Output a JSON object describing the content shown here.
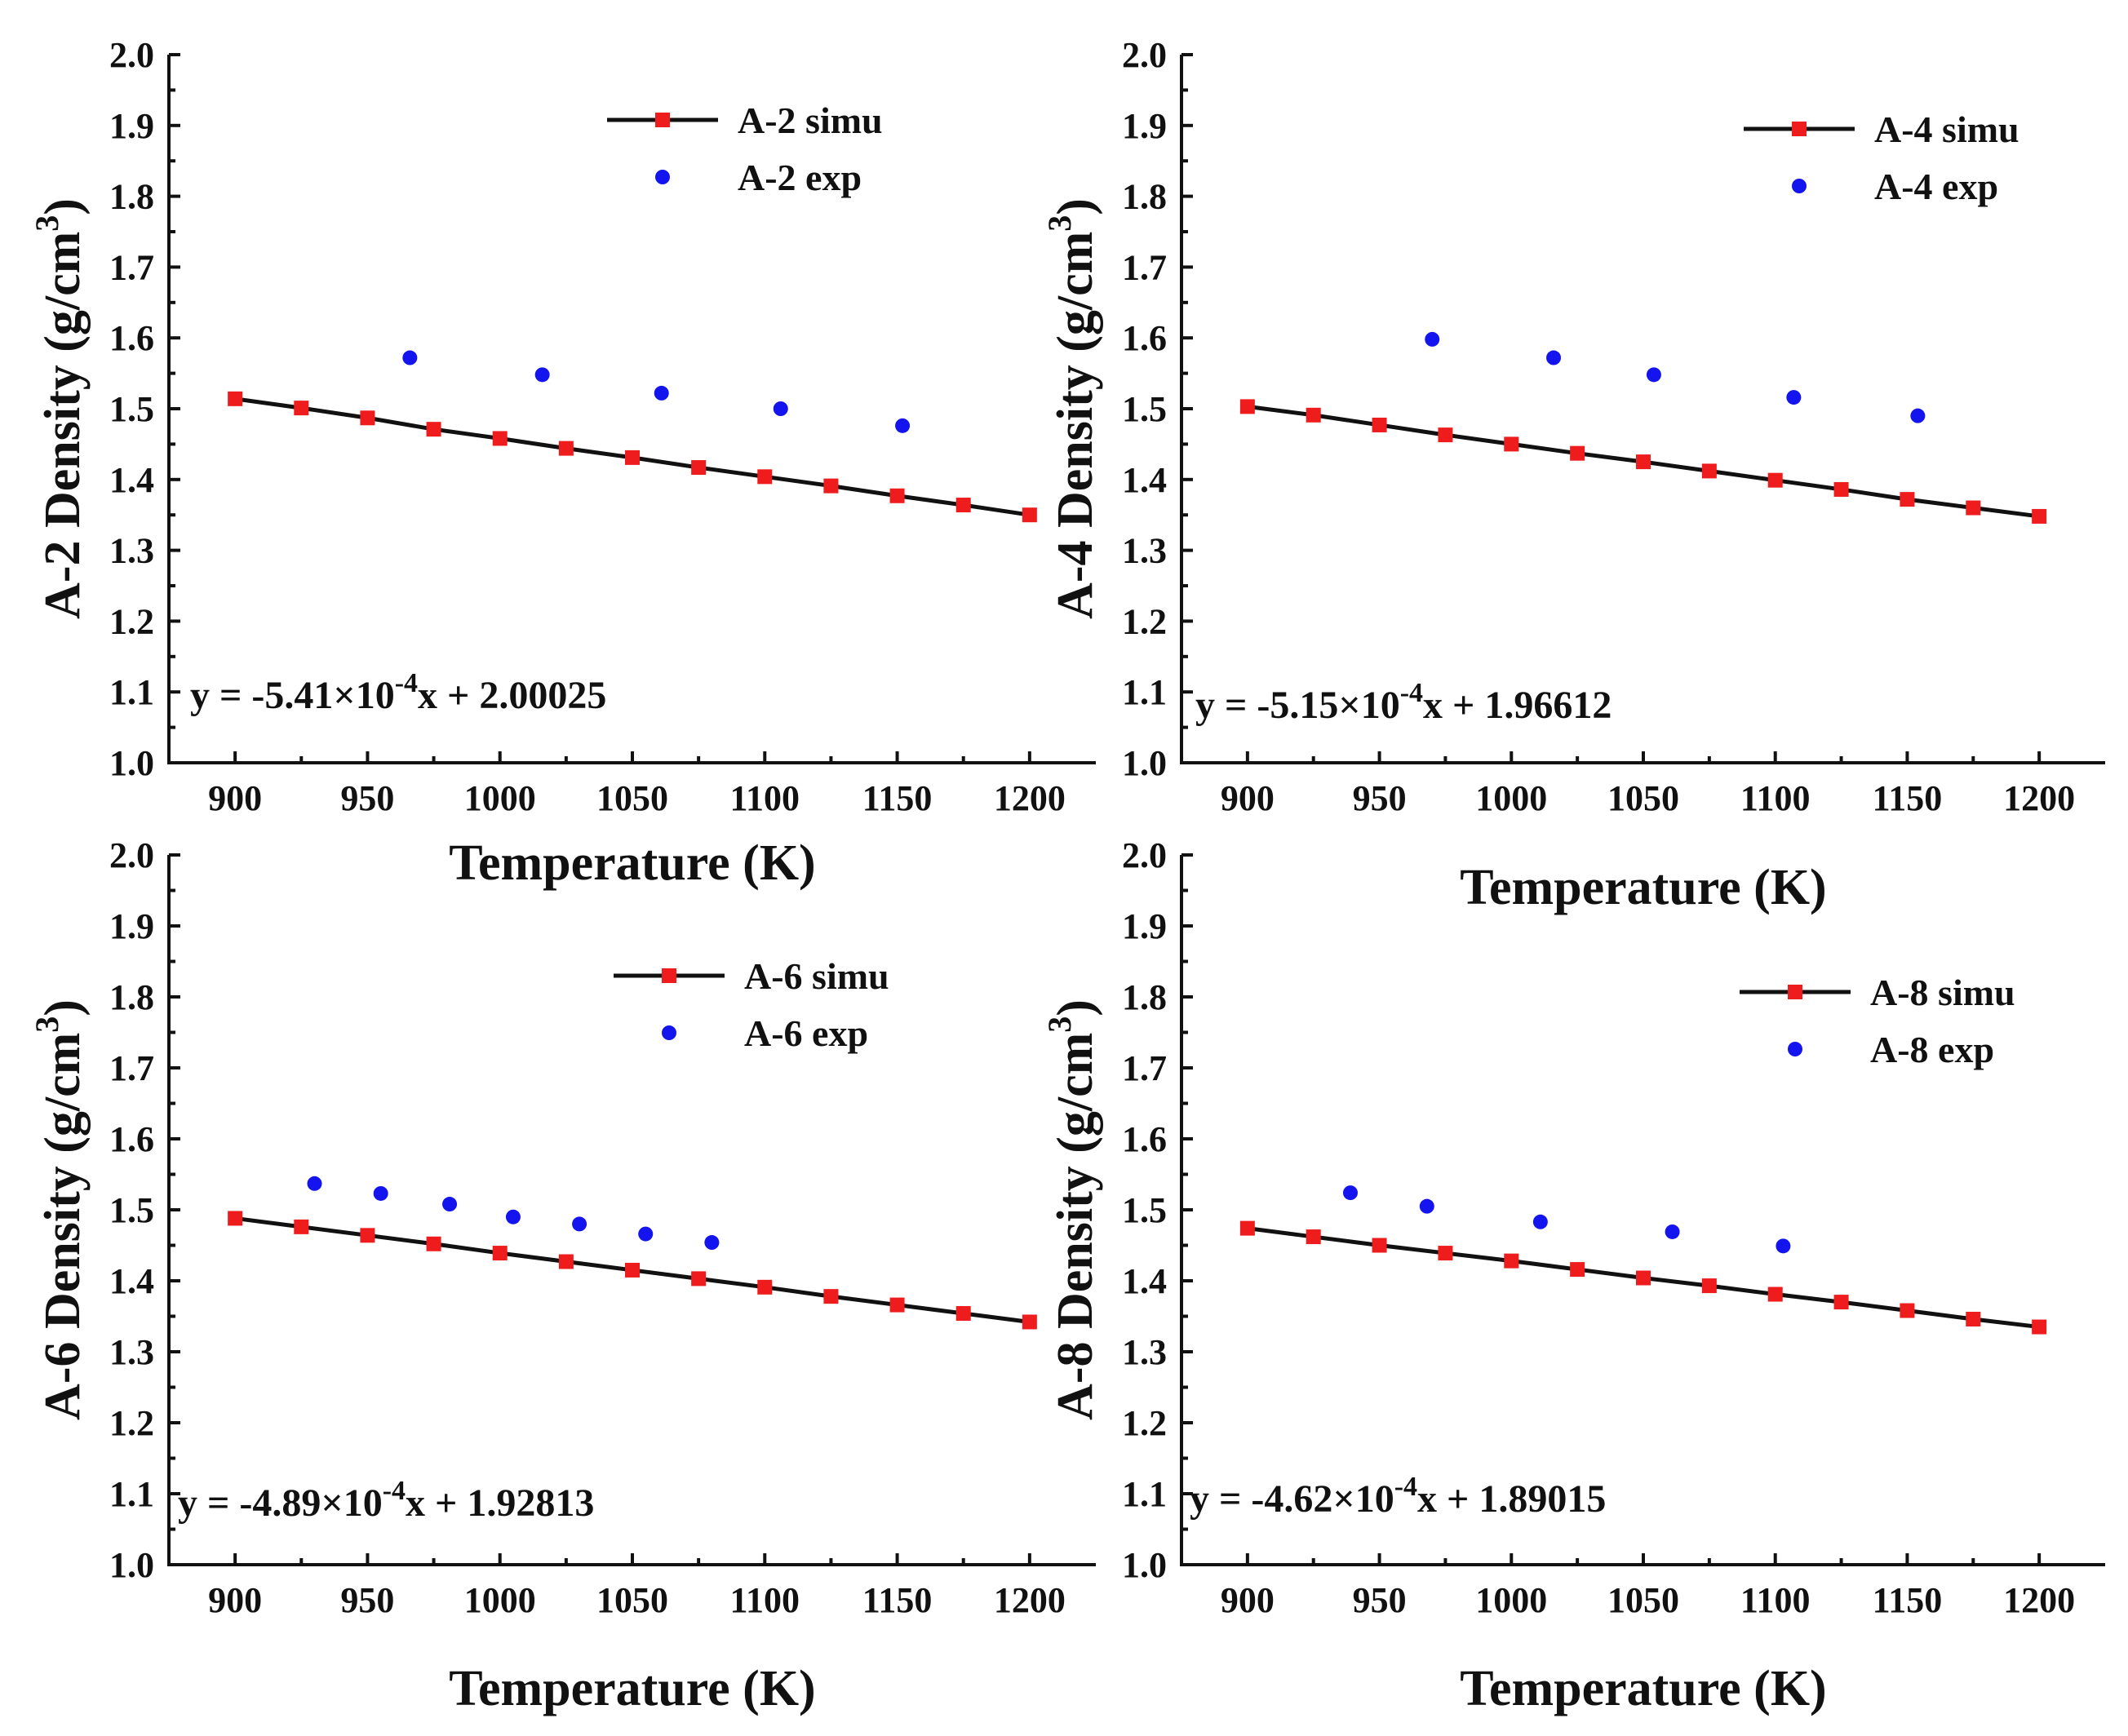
{
  "colors": {
    "simu": "#ee1c1c",
    "exp": "#1414ee",
    "fit_line": "#111111",
    "axis": "#111111"
  },
  "chart_data": [
    {
      "type": "scatter",
      "panel": "top-left",
      "xlabel": "Temperature (K)",
      "ylabel": "A-2 Density (g/cm",
      "ylabel_sup": "3",
      "ylabel_close": ")",
      "xlim": [
        875,
        1225
      ],
      "ylim": [
        1.0,
        2.0
      ],
      "xticks": [
        900,
        950,
        1000,
        1050,
        1100,
        1150,
        1200
      ],
      "yticks": [
        1.0,
        1.1,
        1.2,
        1.3,
        1.4,
        1.5,
        1.6,
        1.7,
        1.8,
        1.9,
        2.0
      ],
      "fit": {
        "slope": -0.000541,
        "intercept": 2.00025,
        "label_pre": "y = -5.41×10",
        "label_exp": "-4",
        "label_post": "x + 2.00025"
      },
      "legend_position": "top-right",
      "series": [
        {
          "name": "A-2 simu",
          "marker": "square",
          "line": true,
          "x": [
            900,
            925,
            950,
            975,
            1000,
            1025,
            1050,
            1075,
            1100,
            1125,
            1150,
            1175,
            1200
          ],
          "y": [
            1.514,
            1.501,
            1.487,
            1.471,
            1.458,
            1.444,
            1.431,
            1.417,
            1.404,
            1.391,
            1.377,
            1.364,
            1.35
          ]
        },
        {
          "name": "A-2 exp",
          "marker": "circle",
          "line": false,
          "x": [
            966,
            1016,
            1061,
            1106,
            1152
          ],
          "y": [
            1.572,
            1.548,
            1.522,
            1.5,
            1.476
          ]
        }
      ]
    },
    {
      "type": "scatter",
      "panel": "top-right",
      "xlabel": "Temperature (K)",
      "ylabel": "A-4 Density (g/cm",
      "ylabel_sup": "3",
      "ylabel_close": ")",
      "xlim": [
        875,
        1225
      ],
      "ylim": [
        1.0,
        2.0
      ],
      "xticks": [
        900,
        950,
        1000,
        1050,
        1100,
        1150,
        1200
      ],
      "yticks": [
        1.0,
        1.1,
        1.2,
        1.3,
        1.4,
        1.5,
        1.6,
        1.7,
        1.8,
        1.9,
        2.0
      ],
      "fit": {
        "slope": -0.000515,
        "intercept": 1.96612,
        "label_pre": "y = -5.15×10",
        "label_exp": "-4",
        "label_post": "x + 1.96612"
      },
      "legend_position": "top-right",
      "series": [
        {
          "name": "A-4 simu",
          "marker": "square",
          "line": true,
          "x": [
            900,
            925,
            950,
            975,
            1000,
            1025,
            1050,
            1075,
            1100,
            1125,
            1150,
            1175,
            1200
          ],
          "y": [
            1.503,
            1.491,
            1.477,
            1.463,
            1.45,
            1.437,
            1.425,
            1.412,
            1.399,
            1.386,
            1.372,
            1.36,
            1.348
          ]
        },
        {
          "name": "A-4 exp",
          "marker": "circle",
          "line": false,
          "x": [
            970,
            1016,
            1054,
            1107,
            1154
          ],
          "y": [
            1.598,
            1.572,
            1.548,
            1.516,
            1.49
          ]
        }
      ]
    },
    {
      "type": "scatter",
      "panel": "bottom-left",
      "xlabel": "Temperature (K)",
      "ylabel": "A-6 Density (g/cm",
      "ylabel_sup": "3",
      "ylabel_close": ")",
      "xlim": [
        875,
        1225
      ],
      "ylim": [
        1.0,
        2.0
      ],
      "xticks": [
        900,
        950,
        1000,
        1050,
        1100,
        1150,
        1200
      ],
      "yticks": [
        1.0,
        1.1,
        1.2,
        1.3,
        1.4,
        1.5,
        1.6,
        1.7,
        1.8,
        1.9,
        2.0
      ],
      "fit": {
        "slope": -0.000489,
        "intercept": 1.92813,
        "label_pre": "y = -4.89×10",
        "label_exp": "-4",
        "label_post": "x + 1.92813"
      },
      "legend_position": "top-right",
      "series": [
        {
          "name": "A-6 simu",
          "marker": "square",
          "line": true,
          "x": [
            900,
            925,
            950,
            975,
            1000,
            1025,
            1050,
            1075,
            1100,
            1125,
            1150,
            1175,
            1200
          ],
          "y": [
            1.488,
            1.476,
            1.464,
            1.452,
            1.439,
            1.427,
            1.415,
            1.403,
            1.391,
            1.378,
            1.366,
            1.354,
            1.342
          ]
        },
        {
          "name": "A-6 exp",
          "marker": "circle",
          "line": false,
          "x": [
            930,
            955,
            981,
            1005,
            1030,
            1055,
            1080
          ],
          "y": [
            1.537,
            1.523,
            1.508,
            1.49,
            1.48,
            1.466,
            1.454
          ]
        }
      ]
    },
    {
      "type": "scatter",
      "panel": "bottom-right",
      "xlabel": "Temperature (K)",
      "ylabel": "A-8 Density (g/cm",
      "ylabel_sup": "3",
      "ylabel_close": ")",
      "xlim": [
        875,
        1225
      ],
      "ylim": [
        1.0,
        2.0
      ],
      "xticks": [
        900,
        950,
        1000,
        1050,
        1100,
        1150,
        1200
      ],
      "yticks": [
        1.0,
        1.1,
        1.2,
        1.3,
        1.4,
        1.5,
        1.6,
        1.7,
        1.8,
        1.9,
        2.0
      ],
      "fit": {
        "slope": -0.000462,
        "intercept": 1.89015,
        "label_pre": "y = -4.62×10",
        "label_exp": "-4",
        "label_post": "x + 1.89015"
      },
      "legend_position": "top-right",
      "series": [
        {
          "name": "A-8 simu",
          "marker": "square",
          "line": true,
          "x": [
            900,
            925,
            950,
            975,
            1000,
            1025,
            1050,
            1075,
            1100,
            1125,
            1150,
            1175,
            1200
          ],
          "y": [
            1.474,
            1.462,
            1.45,
            1.439,
            1.428,
            1.416,
            1.404,
            1.393,
            1.381,
            1.37,
            1.358,
            1.346,
            1.335
          ]
        },
        {
          "name": "A-8 exp",
          "marker": "circle",
          "line": false,
          "x": [
            939,
            968,
            1011,
            1061,
            1103
          ],
          "y": [
            1.524,
            1.505,
            1.483,
            1.469,
            1.449
          ]
        }
      ]
    }
  ]
}
